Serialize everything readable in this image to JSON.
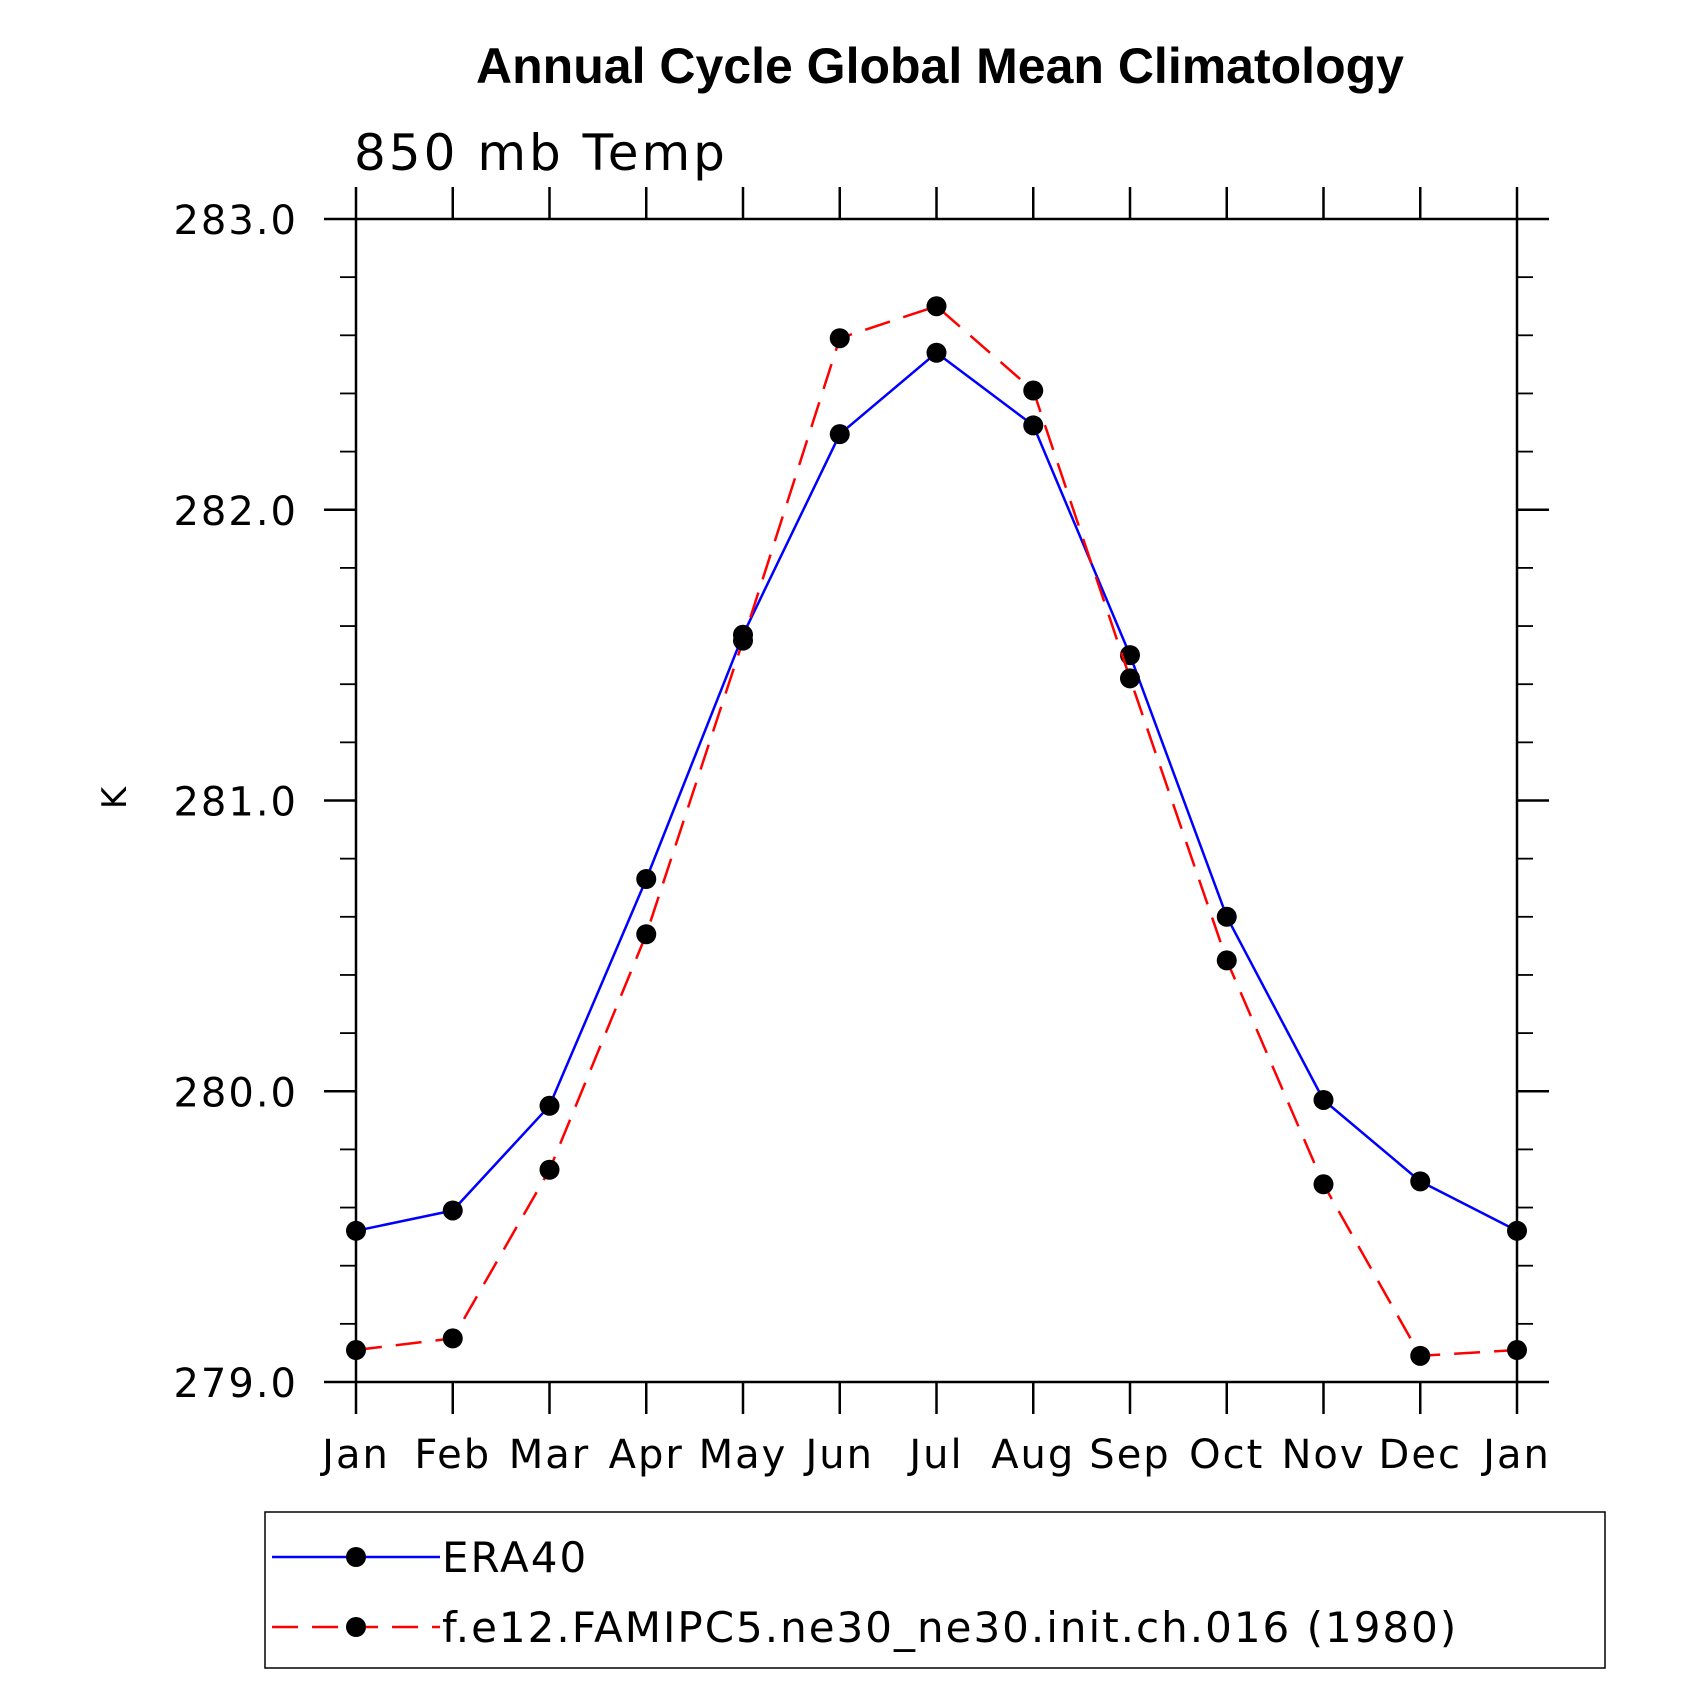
{
  "chart_data": {
    "type": "line",
    "title": "Annual Cycle Global Mean Climatology",
    "subtitle": "850 mb Temp",
    "xlabel": "",
    "ylabel": "K",
    "categories": [
      "Jan",
      "Feb",
      "Mar",
      "Apr",
      "May",
      "Jun",
      "Jul",
      "Aug",
      "Sep",
      "Oct",
      "Nov",
      "Dec",
      "Jan"
    ],
    "ylim": [
      279.0,
      283.0
    ],
    "yticks": [
      "279.0",
      "280.0",
      "281.0",
      "282.0",
      "283.0"
    ],
    "y_minor_step": 0.2,
    "grid": false,
    "legend_position": "bottom",
    "series": [
      {
        "name": "ERA40",
        "color": "#0000ff",
        "line_style": "solid",
        "marker": "filled-circle",
        "values": [
          279.52,
          279.59,
          279.95,
          280.73,
          281.57,
          282.26,
          282.54,
          282.29,
          281.5,
          280.6,
          279.97,
          279.69,
          279.52
        ]
      },
      {
        "name": "f.e12.FAMIPC5.ne30_ne30.init.ch.016 (1980)",
        "color": "#ff0000",
        "line_style": "dashed",
        "marker": "filled-circle",
        "values": [
          279.11,
          279.15,
          279.73,
          280.54,
          281.55,
          282.59,
          282.7,
          282.41,
          281.42,
          280.45,
          279.68,
          279.09,
          279.11
        ]
      }
    ]
  }
}
